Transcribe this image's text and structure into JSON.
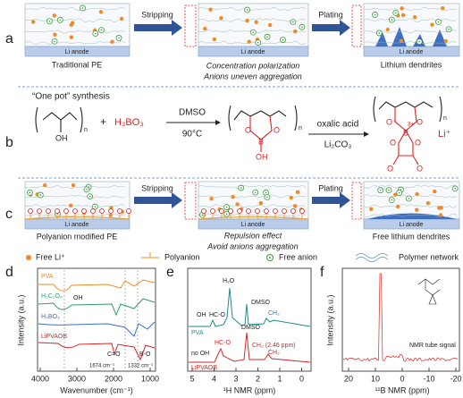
{
  "panel_labels": [
    "a",
    "b",
    "c",
    "d",
    "e",
    "f"
  ],
  "panel_a": {
    "stripping": "Stripping",
    "plating": "Plating",
    "anode": [
      "Li anode",
      "Li anode",
      "Li anode"
    ],
    "left_caption": "Traditional PE",
    "middle_caption": [
      "Concentration polarization",
      "Anions uneven aggregation"
    ],
    "right_caption": "Lithium dendrites"
  },
  "panel_b": {
    "heading": "“One pot” synthesis",
    "pva": [
      "n",
      "OH"
    ],
    "plus": "+",
    "reagent": "H₃BO₃",
    "step1": [
      "DMSO",
      "90°C"
    ],
    "intermediate": [
      "n",
      "O",
      "O",
      "B",
      "OH"
    ],
    "step2": [
      "oxalic acid",
      "Li₂CO₃"
    ],
    "product": [
      "n",
      "O⁻",
      "O",
      "3+",
      "B",
      "O",
      "O",
      "O",
      "O",
      "Li⁺"
    ]
  },
  "panel_c": {
    "stripping": "Stripping",
    "plating": "Plating",
    "anode": [
      "Li anode",
      "Li anode",
      "Li anode"
    ],
    "left_caption": "Polyanion modified PE",
    "middle_caption": [
      "Repulsion effect",
      "Avoid anions aggregation"
    ],
    "right_caption": "Free lithium dendrites"
  },
  "legend": [
    "Free Li⁺",
    "Polyanion",
    "Free anion",
    "Polymer network"
  ],
  "panel_d": {
    "ylabel": "Intensity (a.u.)",
    "xlabel": "Wavenumber (cm⁻¹)",
    "xticks": [
      4000,
      3000,
      2000,
      1000
    ],
    "series_labels": [
      "PVA",
      "H₂C₂O₄",
      "H₃BO₃",
      "LiPVAOB"
    ],
    "annotations": [
      "OH",
      "C=O",
      "B-O",
      "1674 cm⁻¹",
      "1332 cm⁻¹"
    ]
  },
  "panel_e": {
    "xlabel": "¹H NMR (ppm)",
    "xticks": [
      5,
      4,
      3,
      2,
      1,
      0
    ],
    "series_labels": [
      "PVA",
      "LiPVAOB"
    ],
    "annotations": [
      "H₂O",
      "OH",
      "HC-O",
      "DMSO",
      "CH₂",
      "no OH",
      "HC-O",
      "DMSO",
      "CH₂ (2.46 ppm)",
      "CH₂"
    ]
  },
  "panel_f": {
    "ylabel": "Intensity (a.u.)",
    "xlabel": "¹¹B NMR (ppm)",
    "xticks": [
      20,
      10,
      0,
      -10,
      -20
    ],
    "annotation": "NMR tube signal"
  }
}
